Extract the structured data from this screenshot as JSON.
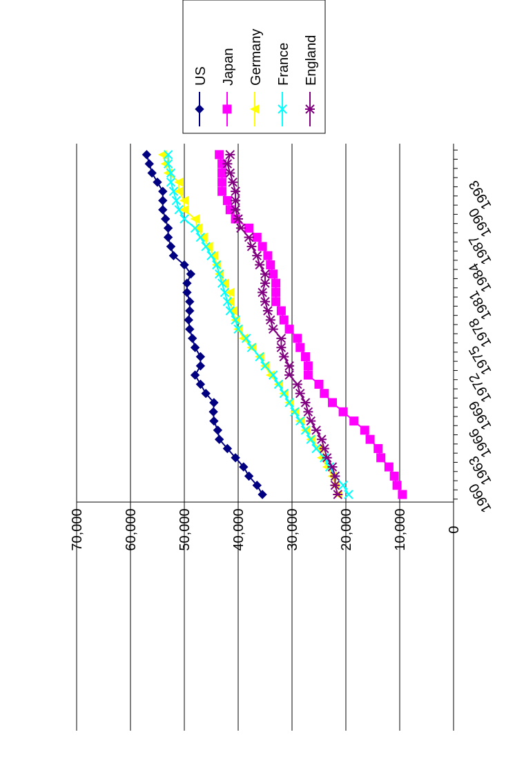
{
  "chart_data": {
    "type": "line",
    "orientation": "rotated 90° clockwise",
    "x": [
      1960,
      1961,
      1962,
      1963,
      1964,
      1965,
      1966,
      1967,
      1968,
      1969,
      1970,
      1971,
      1972,
      1973,
      1974,
      1975,
      1976,
      1977,
      1978,
      1979,
      1980,
      1981,
      1982,
      1983,
      1984,
      1985,
      1986,
      1987,
      1988,
      1989,
      1990,
      1991,
      1992,
      1993,
      1994,
      1995,
      1996,
      1997
    ],
    "x_tick_labels": [
      "1960",
      "1963",
      "1966",
      "1969",
      "1972",
      "1975",
      "1978",
      "1981",
      "1984",
      "1987",
      "1990",
      "1993"
    ],
    "y_tick_labels": [
      "0",
      "10,000",
      "20,000",
      "30,000",
      "40,000",
      "50,000",
      "60,000",
      "70,000"
    ],
    "ylim": [
      0,
      70000
    ],
    "grid": "horizontal major gridlines",
    "legend_position": "top-right",
    "series": [
      {
        "name": "US",
        "color": "#000080",
        "marker": "diamond",
        "values": [
          35500,
          36500,
          38000,
          39000,
          40500,
          42000,
          43500,
          43800,
          44500,
          44600,
          44500,
          46000,
          47000,
          48000,
          47000,
          47000,
          48000,
          48500,
          49000,
          49200,
          49000,
          49000,
          49500,
          49500,
          48800,
          50000,
          52000,
          52500,
          53000,
          53000,
          53500,
          54000,
          54000,
          54000,
          55000,
          56000,
          56500,
          57000
        ]
      },
      {
        "name": "Japan",
        "color": "#FF00FF",
        "marker": "square",
        "values": [
          9500,
          10500,
          11000,
          12000,
          13500,
          14000,
          15500,
          16500,
          18500,
          20500,
          22500,
          24000,
          25000,
          27000,
          27000,
          27500,
          28500,
          29000,
          30500,
          31500,
          32000,
          33000,
          33000,
          33000,
          33500,
          34000,
          34500,
          35500,
          36500,
          38000,
          40500,
          41500,
          42000,
          43000,
          43000,
          43000,
          43000,
          43500
        ]
      },
      {
        "name": "Germany",
        "color": "#FFFF00",
        "marker": "triangle",
        "values": [
          21500,
          22000,
          22500,
          23500,
          24500,
          25000,
          26500,
          27500,
          28500,
          29500,
          30500,
          31500,
          32500,
          34000,
          35000,
          36000,
          37500,
          39000,
          40000,
          40500,
          41000,
          41500,
          41500,
          42500,
          43500,
          44000,
          44500,
          45500,
          46500,
          47500,
          48000,
          50000,
          50000,
          51000,
          51000,
          53000,
          53500,
          54000
        ]
      },
      {
        "name": "France",
        "color": "#00FFFF",
        "marker": "x",
        "values": [
          19500,
          20500,
          22000,
          23000,
          24000,
          25500,
          26500,
          27500,
          28500,
          29500,
          30500,
          31500,
          32500,
          33500,
          35000,
          36000,
          37500,
          38500,
          40000,
          40500,
          41500,
          42000,
          42500,
          43000,
          43500,
          44000,
          45000,
          46000,
          47000,
          48000,
          50000,
          51000,
          51500,
          52000,
          52500,
          52500,
          53000,
          53000
        ]
      },
      {
        "name": "England",
        "color": "#800080",
        "marker": "star",
        "values": [
          21500,
          22000,
          22000,
          22500,
          23500,
          24000,
          24500,
          25500,
          26500,
          27000,
          27500,
          28500,
          29000,
          30500,
          30500,
          31500,
          32000,
          32000,
          33500,
          34000,
          34500,
          35000,
          35500,
          35000,
          35000,
          36000,
          36500,
          37500,
          38000,
          39500,
          40000,
          40500,
          40500,
          40500,
          41000,
          41500,
          42000,
          41500
        ]
      }
    ]
  }
}
